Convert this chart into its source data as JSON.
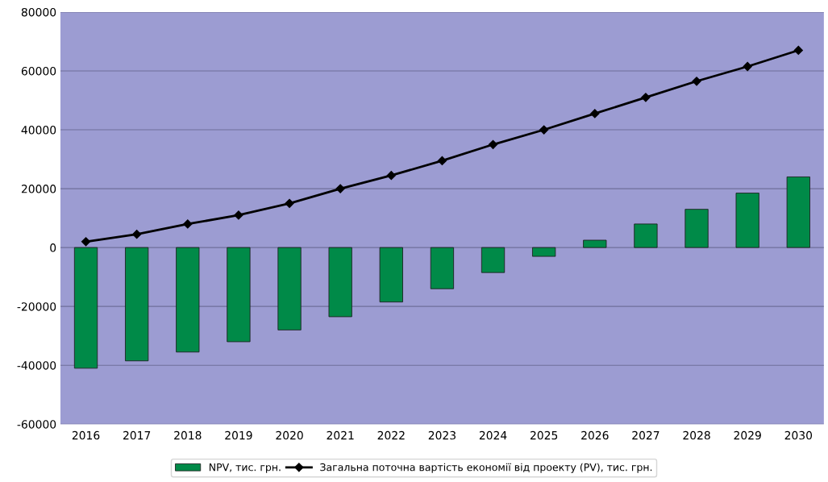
{
  "chart_data": {
    "type": "bar",
    "categories": [
      "2016",
      "2017",
      "2018",
      "2019",
      "2020",
      "2021",
      "2022",
      "2023",
      "2024",
      "2025",
      "2026",
      "2027",
      "2028",
      "2029",
      "2030"
    ],
    "series": [
      {
        "name": "NPV, тис. грн.",
        "color": "#008a48",
        "values": [
          -41000,
          -38500,
          -35500,
          -32000,
          -28000,
          -23500,
          -18500,
          -14000,
          -8500,
          -3000,
          2500,
          8000,
          13000,
          18500,
          24000
        ]
      },
      {
        "name": "Загальна поточна вартість економії від проекту (PV), тис. грн.",
        "type": "line",
        "color": "#000000",
        "marker": "diamond",
        "values": [
          2000,
          4500,
          8000,
          11000,
          15000,
          20000,
          24500,
          29500,
          35000,
          40000,
          45500,
          51000,
          56500,
          61500,
          67000
        ]
      }
    ],
    "ylim": [
      -60000,
      80000
    ],
    "yticks": [
      -60000,
      -40000,
      -20000,
      0,
      20000,
      40000,
      60000,
      80000
    ],
    "grid": "y",
    "legend": "bottom"
  }
}
